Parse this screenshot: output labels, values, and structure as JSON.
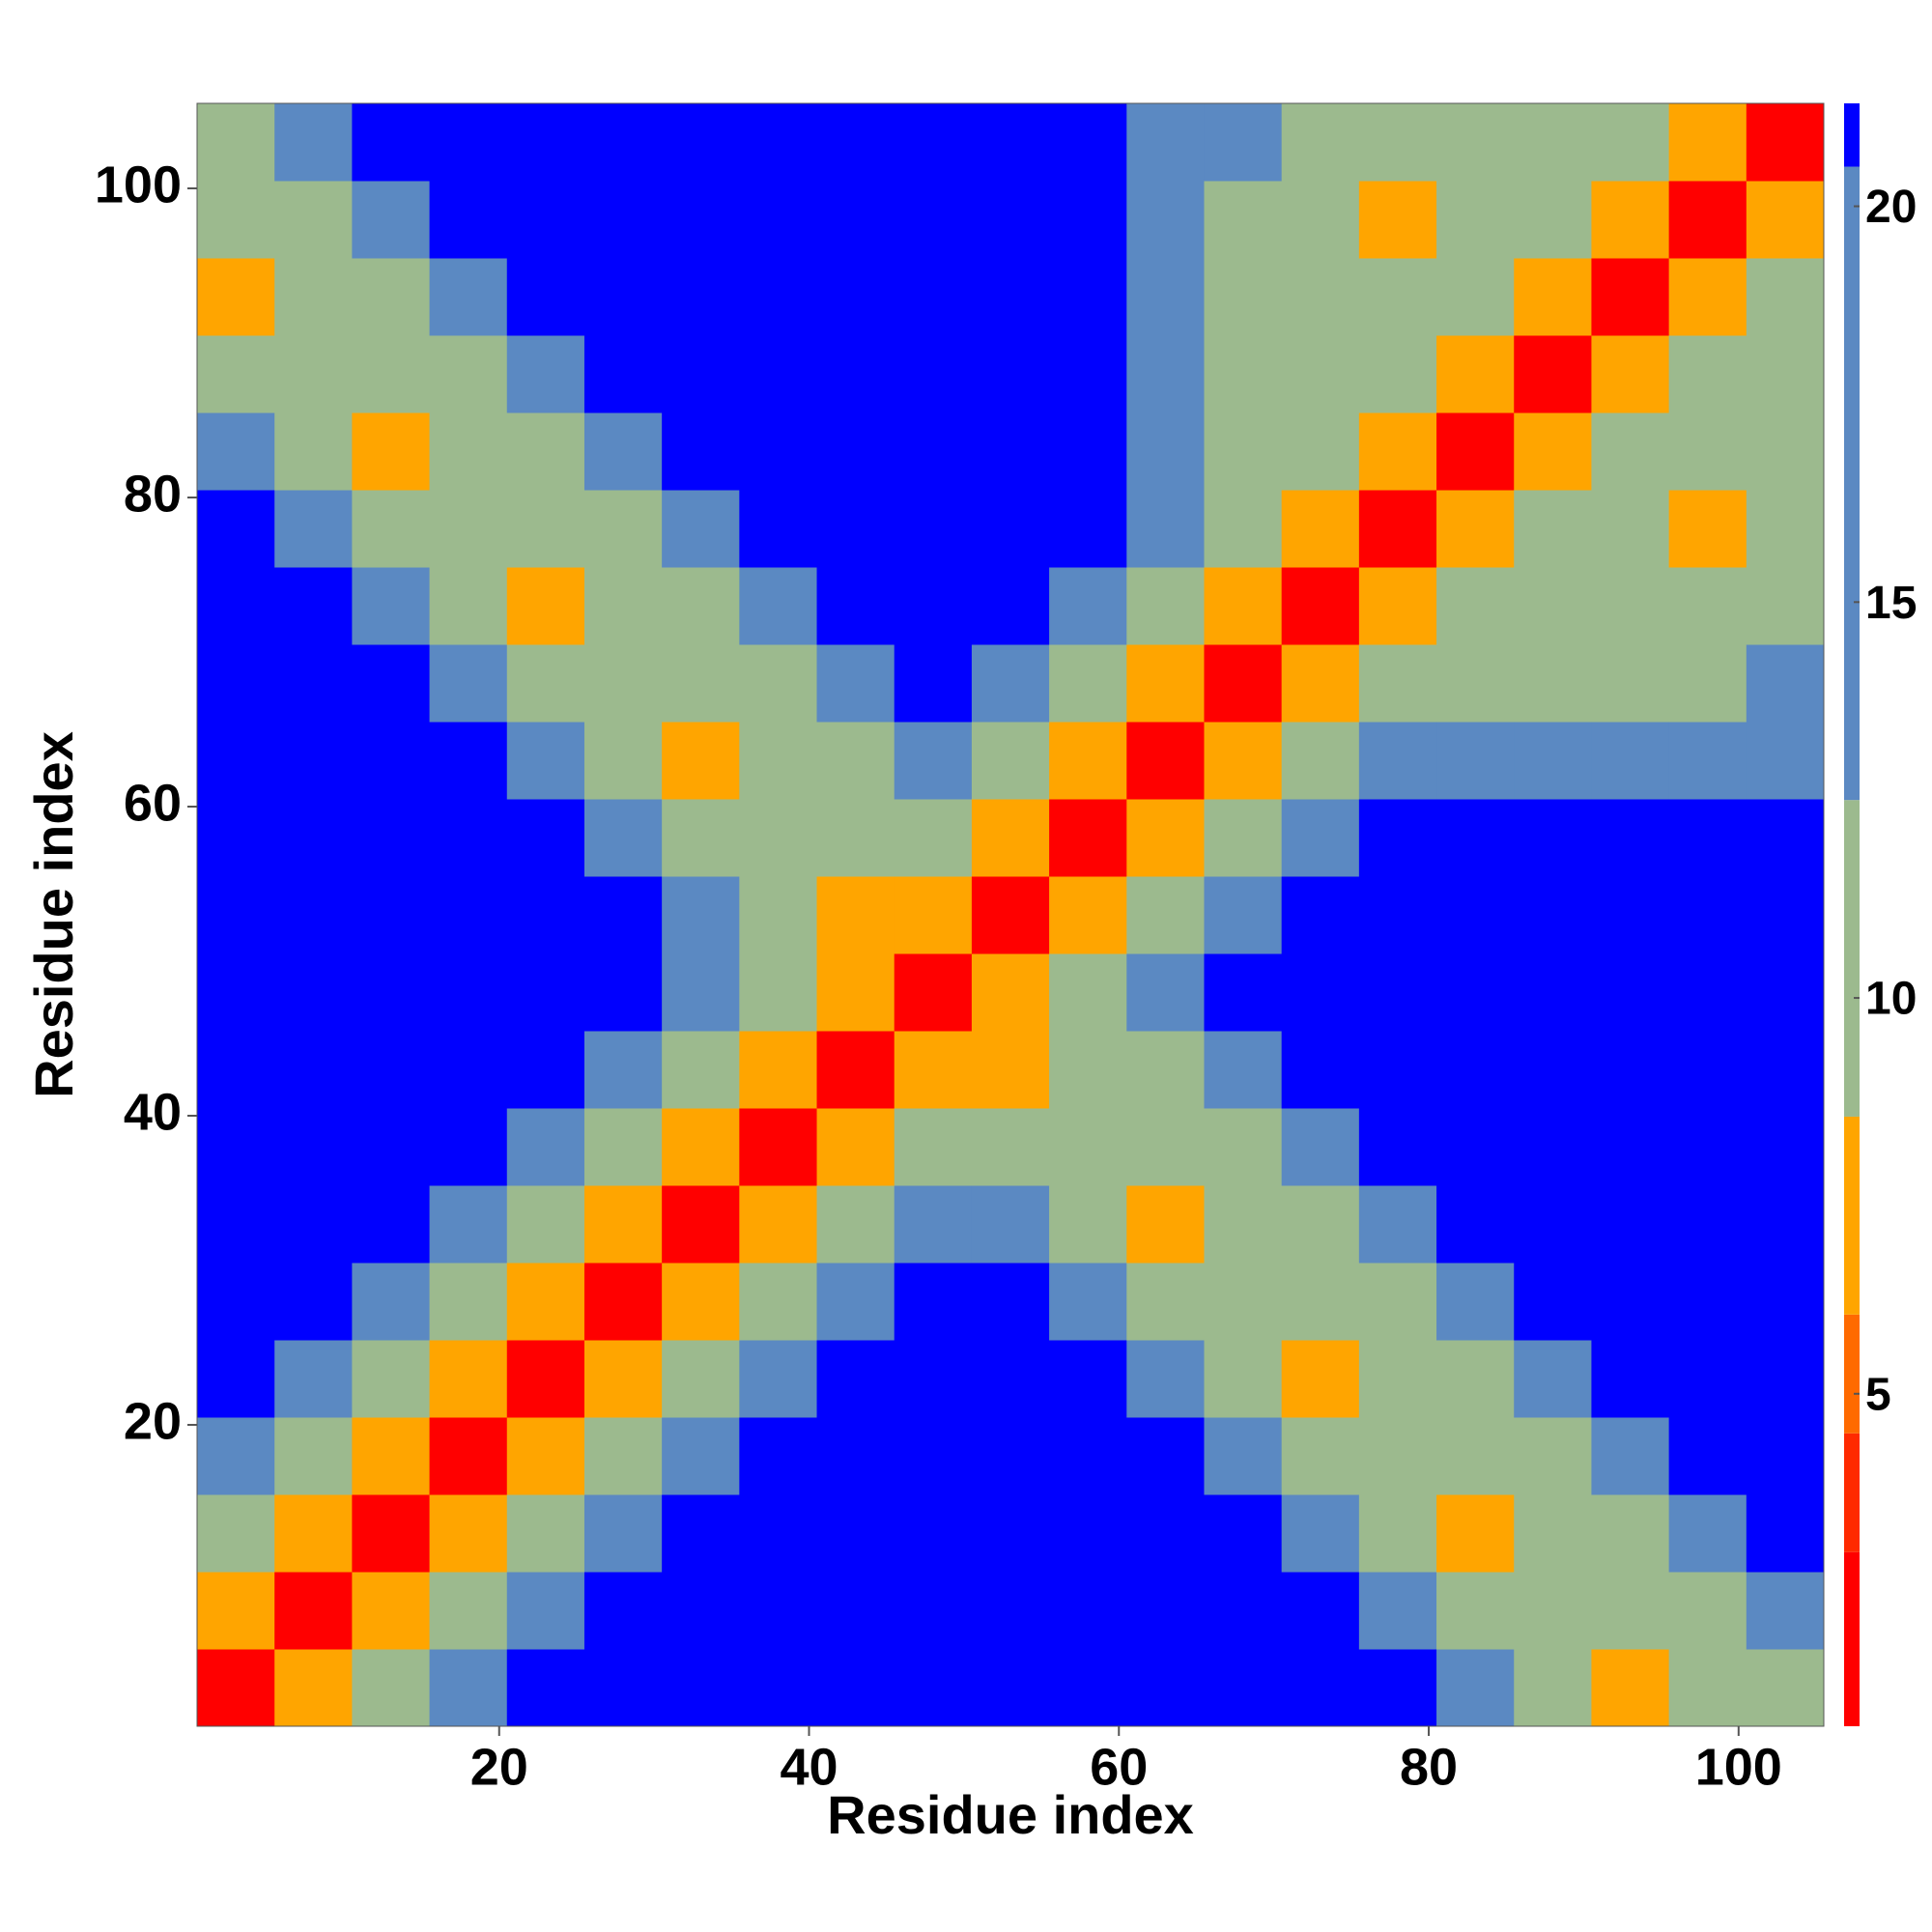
{
  "chart_data": {
    "type": "heatmap",
    "xlabel": "Residue index",
    "ylabel": "Residue index",
    "x": [
      3,
      8,
      13,
      18,
      23,
      28,
      33,
      38,
      43,
      48,
      53,
      58,
      63,
      68,
      73,
      78,
      83,
      88,
      93,
      98,
      103
    ],
    "y": [
      3,
      8,
      13,
      18,
      23,
      28,
      33,
      38,
      43,
      48,
      53,
      58,
      63,
      68,
      73,
      78,
      83,
      88,
      93,
      98,
      103
    ],
    "z": [
      [
        2,
        7,
        11,
        17,
        22,
        22,
        22,
        22,
        22,
        22,
        22,
        22,
        22,
        22,
        22,
        22,
        16,
        12,
        7,
        9,
        12
      ],
      [
        7,
        2,
        7,
        11,
        17,
        22,
        22,
        22,
        22,
        22,
        22,
        22,
        22,
        22,
        22,
        16,
        12,
        9,
        9,
        12,
        16
      ],
      [
        11,
        7,
        2,
        7,
        11,
        17,
        22,
        22,
        22,
        22,
        22,
        22,
        22,
        22,
        16,
        12,
        7,
        9,
        12,
        16,
        22
      ],
      [
        17,
        11,
        7,
        2,
        7,
        11,
        17,
        22,
        22,
        22,
        22,
        22,
        22,
        16,
        12,
        9,
        9,
        12,
        16,
        22,
        22
      ],
      [
        22,
        17,
        11,
        7,
        2,
        7,
        11,
        17,
        22,
        22,
        22,
        22,
        16,
        12,
        7,
        9,
        12,
        16,
        22,
        22,
        22
      ],
      [
        22,
        22,
        17,
        11,
        7,
        2,
        7,
        11,
        17,
        22,
        22,
        16,
        12,
        9,
        9,
        12,
        16,
        22,
        22,
        22,
        22
      ],
      [
        22,
        22,
        22,
        17,
        11,
        7,
        2,
        7,
        11,
        17,
        16,
        12,
        7,
        9,
        12,
        16,
        22,
        22,
        22,
        22,
        22
      ],
      [
        22,
        22,
        22,
        22,
        17,
        11,
        7,
        2,
        7,
        11,
        12,
        9,
        9,
        12,
        16,
        22,
        22,
        22,
        22,
        22,
        22
      ],
      [
        22,
        22,
        22,
        22,
        22,
        17,
        11,
        7,
        2,
        7,
        7,
        9,
        12,
        16,
        22,
        22,
        22,
        22,
        22,
        22,
        22
      ],
      [
        22,
        22,
        22,
        22,
        22,
        22,
        17,
        11,
        7,
        2,
        7,
        11,
        16,
        22,
        22,
        22,
        22,
        22,
        22,
        22,
        22
      ],
      [
        22,
        22,
        22,
        22,
        22,
        22,
        16,
        12,
        7,
        7,
        2,
        7,
        11,
        17,
        22,
        22,
        22,
        22,
        22,
        22,
        22
      ],
      [
        22,
        22,
        22,
        22,
        22,
        16,
        12,
        9,
        9,
        11,
        7,
        2,
        7,
        11,
        17,
        22,
        22,
        22,
        22,
        22,
        22
      ],
      [
        22,
        22,
        22,
        22,
        16,
        12,
        7,
        9,
        12,
        16,
        11,
        7,
        2,
        7,
        11,
        16,
        16,
        16,
        16,
        16,
        16
      ],
      [
        22,
        22,
        22,
        16,
        12,
        9,
        9,
        12,
        16,
        22,
        17,
        11,
        7,
        2,
        7,
        11,
        12,
        12,
        12,
        12,
        16
      ],
      [
        22,
        22,
        16,
        12,
        7,
        9,
        12,
        16,
        22,
        22,
        22,
        17,
        11,
        7,
        2,
        7,
        11,
        12,
        12,
        12,
        12
      ],
      [
        22,
        16,
        12,
        9,
        9,
        12,
        16,
        22,
        22,
        22,
        22,
        22,
        16,
        11,
        7,
        2,
        7,
        11,
        12,
        7,
        12
      ],
      [
        16,
        12,
        7,
        9,
        12,
        16,
        22,
        22,
        22,
        22,
        22,
        22,
        16,
        12,
        11,
        7,
        2,
        7,
        11,
        12,
        12
      ],
      [
        12,
        9,
        9,
        12,
        16,
        22,
        22,
        22,
        22,
        22,
        22,
        22,
        16,
        12,
        12,
        11,
        7,
        2,
        7,
        11,
        12
      ],
      [
        7,
        9,
        12,
        16,
        22,
        22,
        22,
        22,
        22,
        22,
        22,
        22,
        16,
        12,
        12,
        12,
        11,
        7,
        2,
        7,
        11
      ],
      [
        9,
        12,
        16,
        22,
        22,
        22,
        22,
        22,
        22,
        22,
        22,
        22,
        16,
        12,
        12,
        7,
        12,
        11,
        7,
        2,
        7
      ],
      [
        12,
        16,
        22,
        22,
        22,
        22,
        22,
        22,
        22,
        22,
        22,
        22,
        16,
        16,
        12,
        12,
        12,
        12,
        11,
        7,
        2
      ]
    ],
    "xlim": [
      0.5,
      105.5
    ],
    "ylim": [
      0.5,
      105.5
    ],
    "xticks": [
      20,
      40,
      60,
      80,
      100
    ],
    "yticks": [
      20,
      40,
      60,
      80,
      100
    ],
    "zlim": [
      0.8,
      21.3
    ],
    "zticks": [
      5,
      10,
      15,
      20
    ],
    "colorscale": [
      {
        "max": 3,
        "color": "#ff0000"
      },
      {
        "max": 4.5,
        "color": "#ff2a00"
      },
      {
        "max": 6,
        "color": "#ff6a00"
      },
      {
        "max": 8.5,
        "color": "#ffa500"
      },
      {
        "max": 12.5,
        "color": "#9cba8e"
      },
      {
        "max": 20.5,
        "color": "#5b89c2"
      },
      {
        "color": "#0000ff"
      }
    ]
  }
}
